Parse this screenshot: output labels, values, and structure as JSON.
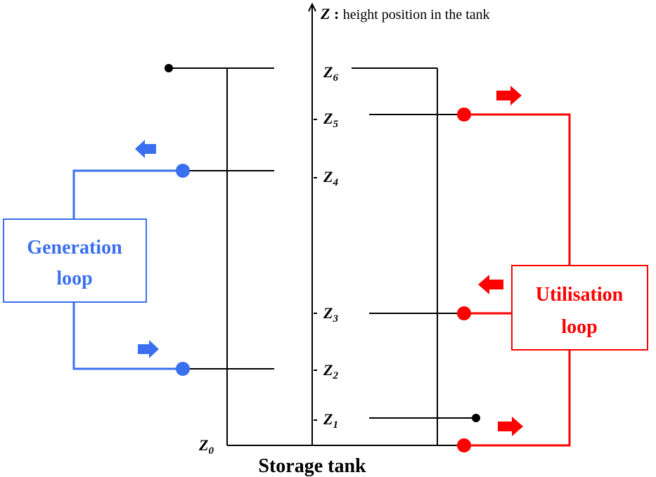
{
  "axis": {
    "symbol": "Z",
    "separator": ":",
    "description": "height position in the tank"
  },
  "levels": [
    {
      "symbol": "Z",
      "subscript": "0"
    },
    {
      "symbol": "Z",
      "subscript": "1"
    },
    {
      "symbol": "Z",
      "subscript": "2"
    },
    {
      "symbol": "Z",
      "subscript": "3"
    },
    {
      "symbol": "Z",
      "subscript": "4"
    },
    {
      "symbol": "Z",
      "subscript": "5"
    },
    {
      "symbol": "Z",
      "subscript": "6"
    }
  ],
  "generation_loop": {
    "lines": [
      "Generation",
      "loop"
    ]
  },
  "utilisation_loop": {
    "lines": [
      "Utilisation",
      "loop"
    ]
  },
  "tank": {
    "label": "Storage tank"
  }
}
